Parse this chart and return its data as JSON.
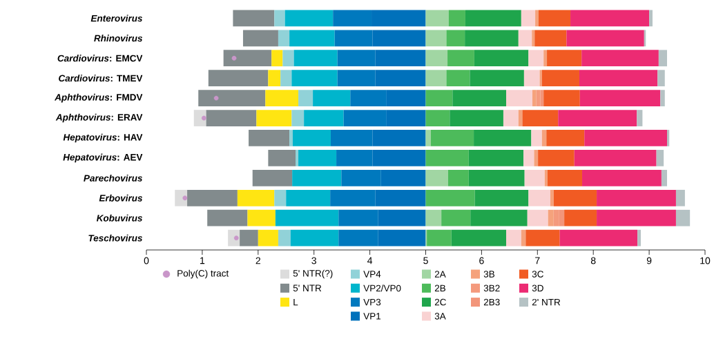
{
  "chart_data": {
    "type": "bar",
    "orientation": "horizontal",
    "legend": "bottom",
    "categories": [
      "*Enterovirus*",
      "*Rhinovirus*",
      "*Cardiovirus*: EMCV",
      "*Cardiovirus*: TMEV",
      "*Aphthovirus*: FMDV",
      "*Aphthovirus*: ERAV",
      "*Hepatovirus*: HAV",
      "*Hepatovirus*: AEV",
      "*Parechovirus*",
      "*Erbovirus*",
      "*Kobuvirus*",
      "*Teschovirus*"
    ],
    "xlim": [
      0,
      10
    ],
    "xticks": [
      0,
      1,
      2,
      3,
      4,
      5,
      6,
      7,
      8,
      9,
      10
    ],
    "series": [
      {
        "name": "Poly(C) tract",
        "type": "scatter",
        "marker": "circle",
        "color": "#c996c9",
        "values": [
          null,
          null,
          1.57,
          null,
          1.25,
          1.03,
          null,
          null,
          null,
          0.69,
          null,
          1.61
        ]
      },
      {
        "name": "5' NTR(?)",
        "color": "#dcdcdc",
        "base": [
          null,
          null,
          null,
          null,
          null,
          0.85,
          null,
          null,
          null,
          0.51,
          null,
          1.46
        ],
        "values": [
          null,
          null,
          null,
          null,
          null,
          0.22,
          null,
          null,
          null,
          0.22,
          null,
          0.21
        ]
      },
      {
        "name": "5' NTR",
        "color": "#828b8d",
        "base": [
          1.55,
          1.73,
          1.38,
          1.11,
          0.93,
          1.07,
          1.83,
          2.18,
          1.9,
          0.73,
          1.09,
          1.67
        ],
        "values": [
          0.74,
          0.63,
          0.86,
          1.07,
          1.2,
          0.9,
          0.73,
          0.49,
          0.71,
          0.9,
          0.72,
          0.33
        ]
      },
      {
        "name": "L",
        "color": "#ffe512",
        "base": [
          null,
          null,
          2.24,
          2.18,
          2.13,
          1.97,
          null,
          null,
          null,
          1.63,
          1.81,
          2.0
        ],
        "values": [
          null,
          null,
          0.2,
          0.22,
          0.59,
          0.63,
          null,
          null,
          null,
          0.66,
          0.5,
          0.36
        ]
      },
      {
        "name": "VP4",
        "color": "#91d2d8",
        "base": [
          2.29,
          2.36,
          2.44,
          2.4,
          2.72,
          2.6,
          2.56,
          2.67,
          null,
          2.29,
          null,
          2.36
        ],
        "values": [
          0.19,
          0.2,
          0.2,
          0.2,
          0.26,
          0.22,
          0.06,
          0.05,
          null,
          0.21,
          null,
          0.22
        ]
      },
      {
        "name": "VP2/VP0",
        "color": "#00b5cc",
        "base": [
          2.48,
          2.56,
          2.64,
          2.6,
          2.98,
          2.82,
          2.62,
          2.72,
          2.61,
          2.5,
          2.31,
          2.58
        ],
        "values": [
          0.86,
          0.81,
          0.78,
          0.82,
          0.67,
          0.71,
          0.68,
          0.68,
          0.88,
          0.79,
          1.13,
          0.86
        ]
      },
      {
        "name": "VP3",
        "color": "#0079be",
        "base": [
          3.34,
          3.37,
          3.42,
          3.42,
          3.65,
          3.53,
          3.3,
          3.4,
          3.49,
          3.29,
          3.44,
          3.44
        ],
        "values": [
          0.69,
          0.68,
          0.68,
          0.68,
          0.65,
          0.77,
          0.75,
          0.65,
          0.71,
          0.81,
          0.71,
          0.71
        ]
      },
      {
        "name": "VP1",
        "color": "#0071bb",
        "base": [
          4.03,
          4.05,
          4.1,
          4.1,
          4.3,
          4.3,
          4.05,
          4.05,
          4.2,
          4.1,
          4.15,
          4.15
        ],
        "values": [
          0.97,
          0.95,
          0.9,
          0.9,
          0.7,
          0.7,
          0.95,
          0.95,
          0.8,
          0.9,
          0.85,
          0.85
        ]
      },
      {
        "name": "2A",
        "color": "#a1d6a3",
        "base": [
          5.0,
          5.0,
          5.0,
          5.0,
          null,
          null,
          5.0,
          null,
          5.0,
          null,
          5.0,
          5.0
        ],
        "values": [
          0.41,
          0.37,
          0.39,
          0.37,
          null,
          null,
          0.09,
          null,
          0.4,
          null,
          0.28,
          0.02
        ]
      },
      {
        "name": "2B",
        "color": "#4dbb5b",
        "base": [
          5.41,
          5.37,
          5.39,
          5.37,
          5.0,
          5.0,
          5.09,
          5.0,
          5.4,
          5.0,
          5.28,
          5.02
        ],
        "values": [
          0.3,
          0.33,
          0.48,
          0.42,
          0.48,
          0.43,
          0.77,
          0.77,
          0.37,
          0.88,
          0.52,
          0.44
        ]
      },
      {
        "name": "2C",
        "color": "#1fa54c",
        "base": [
          5.71,
          5.7,
          5.87,
          5.79,
          5.48,
          5.43,
          5.86,
          5.77,
          5.77,
          5.88,
          5.8,
          5.46
        ],
        "values": [
          1.0,
          0.96,
          0.97,
          0.97,
          0.96,
          0.96,
          1.03,
          0.98,
          1.0,
          0.96,
          1.02,
          0.98
        ]
      },
      {
        "name": "3A",
        "color": "#f9d2d2",
        "base": [
          6.71,
          6.66,
          6.84,
          6.76,
          6.44,
          6.39,
          6.89,
          6.75,
          6.77,
          6.84,
          6.82,
          6.44
        ],
        "values": [
          0.25,
          0.24,
          0.27,
          0.28,
          0.47,
          0.27,
          0.19,
          0.19,
          0.36,
          0.39,
          0.37,
          0.27
        ]
      },
      {
        "name": "3B",
        "color": "#f5a27c",
        "base": [
          6.96,
          6.9,
          7.11,
          7.04,
          6.91,
          6.66,
          7.08,
          6.94,
          7.13,
          7.23,
          7.19,
          6.71
        ],
        "values": [
          0.06,
          0.05,
          0.06,
          0.04,
          0.07,
          0.07,
          0.08,
          0.07,
          0.05,
          0.06,
          0.1,
          0.08
        ]
      },
      {
        "name": "3B2",
        "color": "#f49a7d",
        "base": [
          null,
          null,
          null,
          null,
          6.98,
          null,
          null,
          null,
          null,
          null,
          7.29,
          null
        ],
        "values": [
          null,
          null,
          null,
          null,
          0.07,
          null,
          null,
          null,
          null,
          null,
          0.1,
          null
        ]
      },
      {
        "name": "2B3",
        "color": "#f2957a",
        "base": [
          null,
          null,
          null,
          null,
          7.05,
          null,
          null,
          null,
          null,
          null,
          7.39,
          null
        ],
        "values": [
          null,
          null,
          null,
          null,
          0.06,
          null,
          null,
          null,
          null,
          null,
          0.09,
          null
        ]
      },
      {
        "name": "3C",
        "color": "#f15b23",
        "base": [
          7.02,
          6.95,
          7.17,
          7.08,
          7.11,
          6.73,
          7.16,
          7.01,
          7.18,
          7.29,
          7.48,
          6.79
        ],
        "values": [
          0.57,
          0.57,
          0.62,
          0.67,
          0.65,
          0.64,
          0.68,
          0.65,
          0.62,
          0.77,
          0.58,
          0.61
        ]
      },
      {
        "name": "3D",
        "color": "#ec2b73",
        "base": [
          7.59,
          7.52,
          7.79,
          7.75,
          7.76,
          7.37,
          7.84,
          7.66,
          7.8,
          8.06,
          8.06,
          7.4
        ],
        "values": [
          1.41,
          1.39,
          1.38,
          1.4,
          1.44,
          1.41,
          1.48,
          1.47,
          1.42,
          1.42,
          1.42,
          1.39
        ]
      },
      {
        "name": "2' NTR",
        "color": "#b5c2c4",
        "base": [
          9.0,
          8.91,
          9.17,
          9.15,
          9.2,
          8.78,
          9.32,
          9.13,
          9.22,
          9.48,
          9.48,
          8.79
        ],
        "values": [
          0.06,
          0.03,
          0.15,
          0.13,
          0.08,
          0.1,
          0.04,
          0.13,
          0.1,
          0.16,
          0.25,
          0.06
        ]
      }
    ]
  }
}
